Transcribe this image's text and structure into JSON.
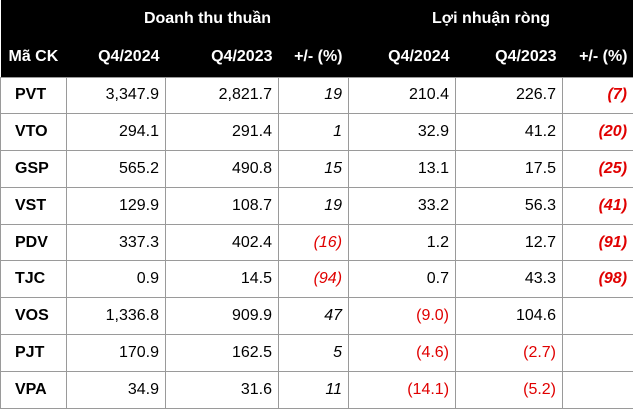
{
  "header": {
    "group_revenue": "Doanh thu thuần",
    "group_profit": "Lợi nhuận ròng",
    "columns": [
      "Mã CK",
      "Q4/2024",
      "Q4/2023",
      "+/- (%)",
      "Q4/2024",
      "Q4/2023",
      "+/- (%)"
    ]
  },
  "colors": {
    "header_bg": "#000000",
    "header_text": "#ffffff",
    "negative": "#e00000",
    "border": "#9a9a9a"
  },
  "rows": [
    {
      "code": "PVT",
      "dt_2024": "3,347.9",
      "dt_2023": "2,821.7",
      "dt_pct": "19",
      "ln_2024": "210.4",
      "ln_2023": "226.7",
      "ln_pct": "(7)"
    },
    {
      "code": "VTO",
      "dt_2024": "294.1",
      "dt_2023": "291.4",
      "dt_pct": "1",
      "ln_2024": "32.9",
      "ln_2023": "41.2",
      "ln_pct": "(20)"
    },
    {
      "code": "GSP",
      "dt_2024": "565.2",
      "dt_2023": "490.8",
      "dt_pct": "15",
      "ln_2024": "13.1",
      "ln_2023": "17.5",
      "ln_pct": "(25)"
    },
    {
      "code": "VST",
      "dt_2024": "129.9",
      "dt_2023": "108.7",
      "dt_pct": "19",
      "ln_2024": "33.2",
      "ln_2023": "56.3",
      "ln_pct": "(41)"
    },
    {
      "code": "PDV",
      "dt_2024": "337.3",
      "dt_2023": "402.4",
      "dt_pct": "(16)",
      "ln_2024": "1.2",
      "ln_2023": "12.7",
      "ln_pct": "(91)"
    },
    {
      "code": "TJC",
      "dt_2024": "0.9",
      "dt_2023": "14.5",
      "dt_pct": "(94)",
      "ln_2024": "0.7",
      "ln_2023": "43.3",
      "ln_pct": "(98)"
    },
    {
      "code": "VOS",
      "dt_2024": "1,336.8",
      "dt_2023": "909.9",
      "dt_pct": "47",
      "ln_2024": "(9.0)",
      "ln_2023": "104.6",
      "ln_pct": ""
    },
    {
      "code": "PJT",
      "dt_2024": "170.9",
      "dt_2023": "162.5",
      "dt_pct": "5",
      "ln_2024": "(4.6)",
      "ln_2023": "(2.7)",
      "ln_pct": ""
    },
    {
      "code": "VPA",
      "dt_2024": "34.9",
      "dt_2023": "31.6",
      "dt_pct": "11",
      "ln_2024": "(14.1)",
      "ln_2023": "(5.2)",
      "ln_pct": ""
    }
  ]
}
